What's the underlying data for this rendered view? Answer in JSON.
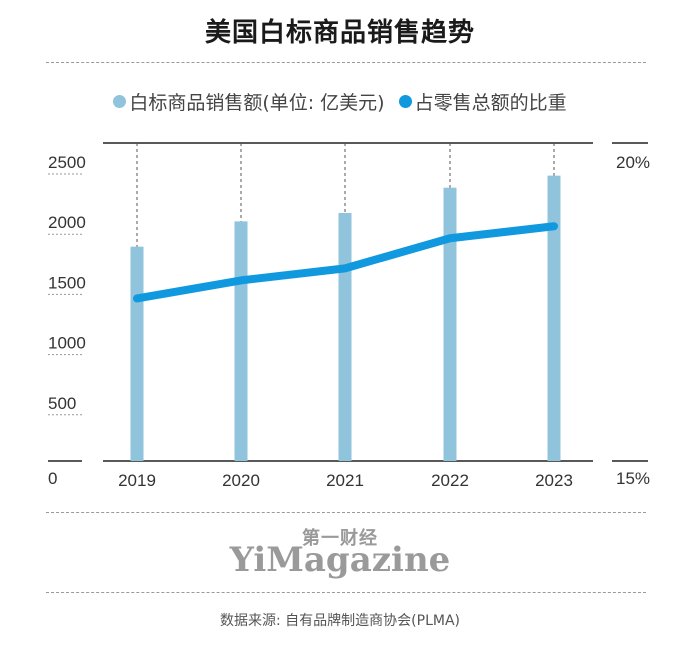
{
  "chart_data": {
    "type": "bar",
    "title": "美国白标商品销售趋势",
    "categories": [
      "2019",
      "2020",
      "2021",
      "2022",
      "2023"
    ],
    "series": [
      {
        "name": "白标商品销售额(单位: 亿美元)",
        "type": "bar",
        "axis": "left",
        "values": [
          1780,
          1990,
          2060,
          2270,
          2370
        ]
      },
      {
        "name": "占零售总额的比重",
        "type": "line",
        "axis": "right",
        "values": [
          17.7,
          18.0,
          18.2,
          18.7,
          18.9
        ]
      }
    ],
    "y_left": {
      "min": 0,
      "max": 2500,
      "ticks": [
        0,
        500,
        1000,
        1500,
        2000,
        2500
      ],
      "tick_labels": [
        "0",
        "500",
        "1000",
        "1500",
        "2000",
        "2500"
      ]
    },
    "y_right": {
      "min": 15,
      "max": 20,
      "ticks": [
        15,
        20
      ],
      "tick_labels": [
        "15%",
        "20%"
      ]
    },
    "grid": "vertical-dashed",
    "legend_position": "top"
  },
  "colors": {
    "bar": "#8fc4dc",
    "line": "#1199e0",
    "axis": "#222222",
    "dash": "#9a9a9a"
  },
  "legend": {
    "bar_label": "白标商品销售额(单位: 亿美元)",
    "line_label": "占零售总额的比重"
  },
  "brand": {
    "cn": "第一财经",
    "en": "YiMagazine"
  },
  "source": "数据来源: 自有品牌制造商协会(PLMA)"
}
